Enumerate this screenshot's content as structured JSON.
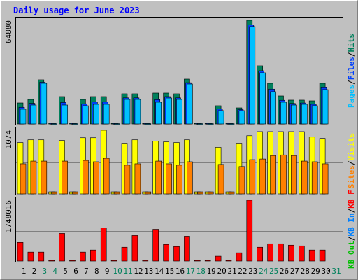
{
  "title": "Daily usage for June 2023",
  "separator": "/",
  "chart_data": [
    {
      "type": "bar",
      "ylim": [
        0,
        64880
      ],
      "series": [
        {
          "name": "Hits",
          "color": "#00805c",
          "values": [
            13150,
            15340,
            27620,
            400,
            17100,
            400,
            15340,
            17100,
            17100,
            400,
            18850,
            18850,
            400,
            19290,
            19290,
            18850,
            28060,
            400,
            400,
            11400,
            400,
            10080,
            64880,
            36390,
            25430,
            17540,
            14910,
            14910,
            14470,
            25430,
            null
          ]
        },
        {
          "name": "Files",
          "color": "#0040ff",
          "values": [
            10400,
            12900,
            26100,
            300,
            13400,
            300,
            12600,
            13700,
            13700,
            300,
            16300,
            16300,
            300,
            15200,
            17100,
            16300,
            25800,
            300,
            300,
            9300,
            300,
            9000,
            62100,
            33300,
            21800,
            14800,
            12800,
            13100,
            12300,
            22700,
            null
          ]
        },
        {
          "name": "Pages",
          "color": "#00c0ff",
          "values": [
            9210,
            11840,
            25430,
            200,
            11840,
            200,
            11400,
            12280,
            12280,
            200,
            15340,
            15340,
            200,
            13590,
            16220,
            15340,
            24990,
            200,
            200,
            8330,
            200,
            8330,
            60940,
            32000,
            20170,
            13590,
            11840,
            12280,
            11400,
            21480,
            null
          ]
        }
      ]
    },
    {
      "type": "bar",
      "ylim": [
        0,
        1074
      ],
      "series": [
        {
          "name": "Visits",
          "color": "#ffff00",
          "values": [
            866,
            912,
            912,
            35,
            901,
            35,
            947,
            947,
            1074,
            35,
            855,
            912,
            35,
            889,
            878,
            866,
            912,
            35,
            35,
            785,
            35,
            855,
            982,
            1051,
            1051,
            1051,
            1051,
            1051,
            959,
            936,
            null
          ]
        },
        {
          "name": "Sites",
          "color": "#ff8000",
          "values": [
            508,
            554,
            554,
            35,
            554,
            35,
            566,
            543,
            601,
            35,
            485,
            508,
            35,
            554,
            508,
            485,
            543,
            35,
            35,
            497,
            35,
            462,
            578,
            589,
            647,
            658,
            647,
            554,
            543,
            508,
            null
          ]
        }
      ]
    },
    {
      "type": "bar",
      "ylim": [
        0,
        1748016
      ],
      "categories": [
        "1",
        "2",
        "3",
        "4",
        "5",
        "6",
        "7",
        "8",
        "9",
        "10",
        "11",
        "12",
        "13",
        "14",
        "15",
        "16",
        "17",
        "18",
        "19",
        "20",
        "21",
        "22",
        "23",
        "24",
        "25",
        "26",
        "27",
        "28",
        "29",
        "30",
        "31"
      ],
      "weekend": [
        2,
        3,
        9,
        10,
        16,
        17,
        23,
        24,
        30
      ],
      "weekend_color": "#00805c",
      "weekday_color": "#000000",
      "series": [
        {
          "name": "KB F",
          "color": "#ff0000",
          "values": [
            536000,
            258000,
            258000,
            20000,
            795000,
            20000,
            258000,
            318000,
            953000,
            20000,
            397000,
            735000,
            20000,
            914000,
            477000,
            417000,
            715000,
            20000,
            20000,
            139000,
            20000,
            238000,
            1748016,
            397000,
            497000,
            497000,
            457000,
            437000,
            318000,
            318000,
            null
          ]
        },
        {
          "name": "KB In",
          "color": "#0080ff"
        },
        {
          "name": "KB Out",
          "color": "#00c000"
        }
      ]
    }
  ]
}
